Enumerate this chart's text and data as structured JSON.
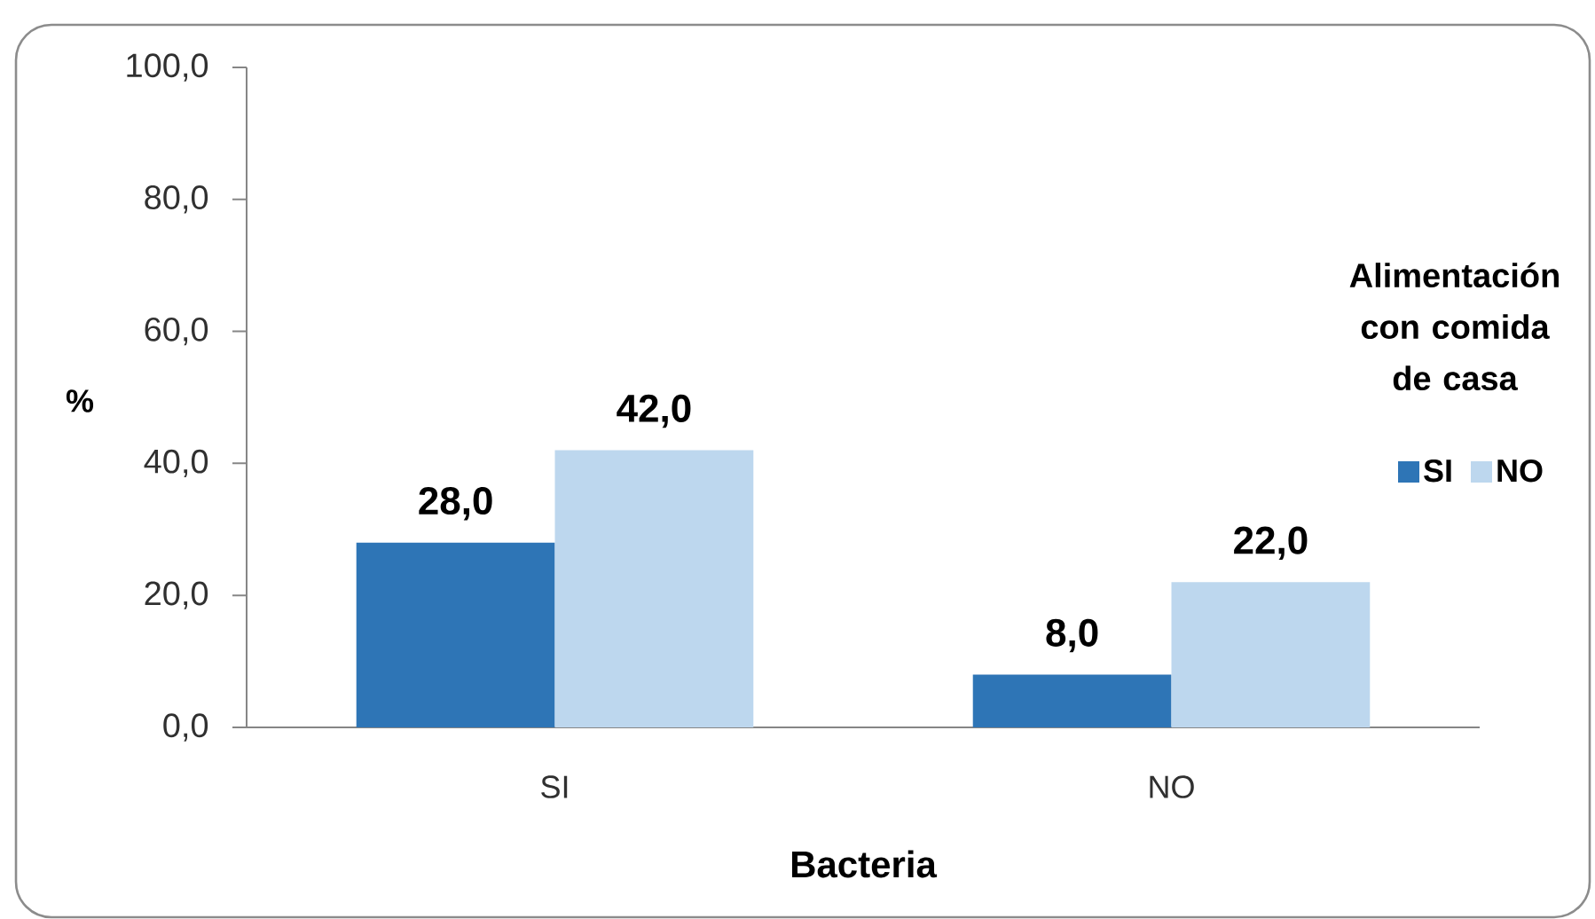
{
  "chart_data": {
    "type": "bar",
    "xlabel": "Bacteria",
    "ylabel": "%",
    "legend_title": "Alimentación con comida de casa",
    "categories": [
      "SI",
      "NO"
    ],
    "series": [
      {
        "name": "SI",
        "color": "#2e75b6",
        "values": [
          28,
          8
        ],
        "value_labels": [
          "28,0",
          "8,0"
        ]
      },
      {
        "name": "NO",
        "color": "#bdd7ee",
        "values": [
          42,
          22
        ],
        "value_labels": [
          "42,0",
          "22,0"
        ]
      }
    ],
    "ylim": [
      0,
      100
    ],
    "yticks": [
      {
        "value": 0,
        "label": "0,0"
      },
      {
        "value": 20,
        "label": "20,0"
      },
      {
        "value": 40,
        "label": "40,0"
      },
      {
        "value": 60,
        "label": "60,0"
      },
      {
        "value": 80,
        "label": "80,0"
      },
      {
        "value": 100,
        "label": "100,0"
      }
    ],
    "legend": "right"
  }
}
